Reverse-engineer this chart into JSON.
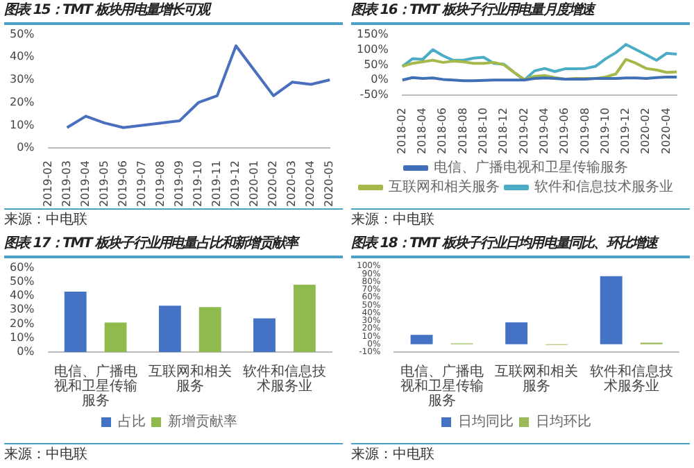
{
  "chart_data": [
    {
      "type": "line",
      "title": "图表 15：TMT 板块用电量增长可观",
      "categories": [
        "2019-02",
        "2019-03",
        "2019-04",
        "2019-05",
        "2019-06",
        "2019-07",
        "2019-08",
        "2019-09",
        "2019-10",
        "2019-11",
        "2019-12",
        "2020-01",
        "2020-02",
        "2020-03",
        "2020-04",
        "2020-05"
      ],
      "series": [
        {
          "color": "#4a6fbe",
          "values": [
            null,
            9,
            14,
            11,
            9,
            10,
            11,
            12,
            20,
            23,
            45,
            34,
            23,
            29,
            28,
            30
          ]
        }
      ],
      "ylim": [
        0,
        50
      ],
      "yticks": [
        {
          "value": 0,
          "label": "0%"
        },
        {
          "value": 10,
          "label": "10%"
        },
        {
          "value": 20,
          "label": "20%"
        },
        {
          "value": 30,
          "label": "30%"
        },
        {
          "value": 40,
          "label": "40%"
        },
        {
          "value": 50,
          "label": "50%"
        }
      ],
      "annotations": [
        "来源：中电联"
      ]
    },
    {
      "type": "line",
      "title": "图表 16：TMT 板块子行业用电量月度增速",
      "categories": [
        "2018-02",
        null,
        "2018-04",
        null,
        "2018-06",
        null,
        "2018-08",
        null,
        "2018-10",
        null,
        "2018-12",
        null,
        "2019-02",
        null,
        "2019-04",
        null,
        "2019-06",
        null,
        "2019-08",
        null,
        "2019-10",
        null,
        "2019-12",
        null,
        "2020-02",
        null,
        "2020-04",
        null
      ],
      "series": [
        {
          "name": "电信、广播电视和卫星传输服务",
          "color": "#3f6fb5",
          "values": [
            0,
            8,
            5,
            7,
            2,
            0,
            -2,
            -2,
            -1,
            0,
            0,
            0,
            0,
            5,
            7,
            5,
            3,
            3,
            3,
            5,
            5,
            5,
            7,
            7,
            5,
            8,
            10,
            10
          ]
        },
        {
          "name": "互联网和相关服务",
          "color": "#a5b84a",
          "values": [
            45,
            55,
            60,
            65,
            58,
            62,
            60,
            55,
            55,
            58,
            50,
            25,
            2,
            12,
            15,
            8,
            3,
            5,
            5,
            5,
            10,
            20,
            68,
            55,
            38,
            33,
            25,
            27
          ]
        },
        {
          "name": "软件和信息技术服务业",
          "color": "#4bacc6",
          "values": [
            45,
            70,
            68,
            100,
            80,
            65,
            65,
            72,
            75,
            55,
            52,
            25,
            0,
            30,
            38,
            28,
            37,
            37,
            38,
            45,
            70,
            90,
            117,
            100,
            83,
            65,
            88,
            85
          ]
        }
      ],
      "ylim": [
        -50,
        150
      ],
      "yticks": [
        {
          "value": -50,
          "label": "-50%"
        },
        {
          "value": 0,
          "label": "0%"
        },
        {
          "value": 50,
          "label": "50%"
        },
        {
          "value": 100,
          "label": "100%"
        },
        {
          "value": 150,
          "label": "150%"
        }
      ],
      "legend": "bottom",
      "annotations": [
        "来源：中电联"
      ]
    },
    {
      "type": "bar",
      "title": "图表 17：TMT 板块子行业用电量占比和新增贡献率",
      "categories": [
        "电信、广播电视和卫星传输服务",
        "互联网和相关服务",
        "软件和信息技术服务业"
      ],
      "series": [
        {
          "name": "占比",
          "color": "#4472c4",
          "values": [
            43,
            33,
            24
          ]
        },
        {
          "name": "新增贡献率",
          "color": "#8fba4e",
          "values": [
            21,
            32,
            48
          ]
        }
      ],
      "ylim": [
        0,
        60
      ],
      "yticks": [
        {
          "value": 0,
          "label": "0%"
        },
        {
          "value": 10,
          "label": "10%"
        },
        {
          "value": 20,
          "label": "20%"
        },
        {
          "value": 30,
          "label": "30%"
        },
        {
          "value": 40,
          "label": "40%"
        },
        {
          "value": 50,
          "label": "50%"
        },
        {
          "value": 60,
          "label": "60%"
        }
      ],
      "legend": "bottom",
      "annotations": [
        "来源：中电联"
      ]
    },
    {
      "type": "bar",
      "title": "图表 18：TMT 板块子行业日均用电量同比、环比增速",
      "categories": [
        "电信、广播电视和卫星传输服务",
        "互联网和相关服务",
        "软件和信息技术服务业"
      ],
      "series": [
        {
          "name": "日均同比",
          "color": "#4472c4",
          "values": [
            12,
            28,
            87
          ]
        },
        {
          "name": "日均环比",
          "color": "#9bbb59",
          "values": [
            1,
            -1,
            2
          ]
        }
      ],
      "ylim": [
        -10,
        100
      ],
      "yticks": [
        {
          "value": -10,
          "label": "-10%"
        },
        {
          "value": 0,
          "label": "0%"
        },
        {
          "value": 10,
          "label": "10%"
        },
        {
          "value": 20,
          "label": "20%"
        },
        {
          "value": 30,
          "label": "30%"
        },
        {
          "value": 40,
          "label": "40%"
        },
        {
          "value": 50,
          "label": "50%"
        },
        {
          "value": 60,
          "label": "60%"
        },
        {
          "value": 70,
          "label": "70%"
        },
        {
          "value": 80,
          "label": "80%"
        },
        {
          "value": 90,
          "label": "90%"
        },
        {
          "value": 100,
          "label": "100%"
        }
      ],
      "legend": "bottom",
      "annotations": [
        "来源：中电联"
      ]
    }
  ]
}
